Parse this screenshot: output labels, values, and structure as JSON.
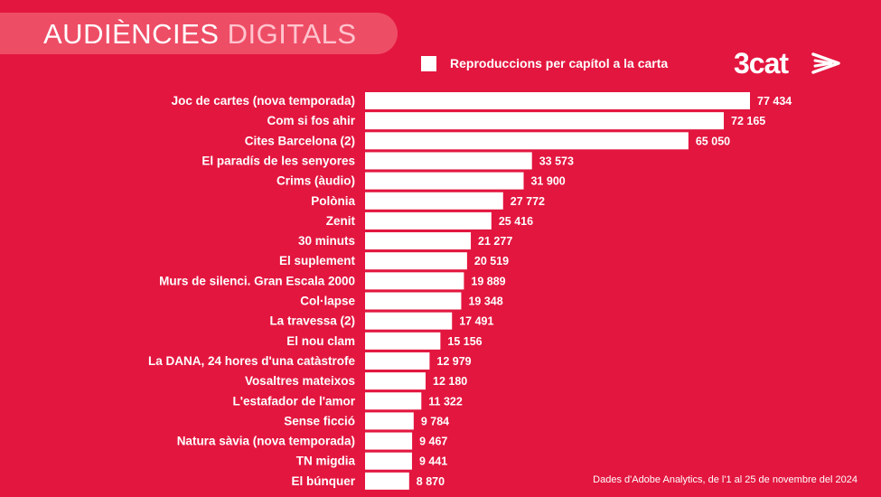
{
  "header": {
    "title_main": "AUDIÈNCIES",
    "title_accent": " DIGITALS"
  },
  "logo": {
    "text": "3cat"
  },
  "colors": {
    "background": "#e3163f",
    "bar": "#ffffff",
    "title_pill": "#ee4d66"
  },
  "footer": {
    "source": "Dades d'Adobe Analytics, de l'1 al 25 de novembre del 2024"
  },
  "chart_data": {
    "type": "bar",
    "orientation": "horizontal",
    "title": "",
    "xlabel": "",
    "ylabel": "",
    "legend": {
      "placement": "top-right",
      "entries": [
        "Reproduccions per capítol a la carta"
      ]
    },
    "grid": false,
    "categories": [
      "Joc de cartes (nova temporada)",
      "Com si fos ahir",
      "Cites Barcelona (2)",
      "El paradís de les senyores",
      "Crims (àudio)",
      "Polònia",
      "Zenit",
      "30 minuts",
      "El suplement",
      "Murs de silenci. Gran Escala 2000",
      "Col·lapse",
      "La travessa (2)",
      "El nou clam",
      "La DANA, 24 hores d'una catàstrofe",
      "Vosaltres mateixos",
      "L'estafador de l'amor",
      "Sense ficció",
      "Natura sàvia (nova temporada)",
      "TN migdia",
      "El búnquer"
    ],
    "values": [
      77434,
      72165,
      65050,
      33573,
      31900,
      27772,
      25416,
      21277,
      20519,
      19889,
      19348,
      17491,
      15156,
      12979,
      12180,
      11322,
      9784,
      9467,
      9441,
      8870
    ],
    "value_labels": [
      "77 434",
      "72 165",
      "65 050",
      "33 573",
      "31 900",
      "27 772",
      "25 416",
      "21 277",
      "20 519",
      "19 889",
      "19 348",
      "17 491",
      "15 156",
      "12 979",
      "12 180",
      "11 322",
      "9 784",
      "9 467",
      "9 441",
      "8 870"
    ],
    "xlim": [
      0,
      77434
    ]
  }
}
